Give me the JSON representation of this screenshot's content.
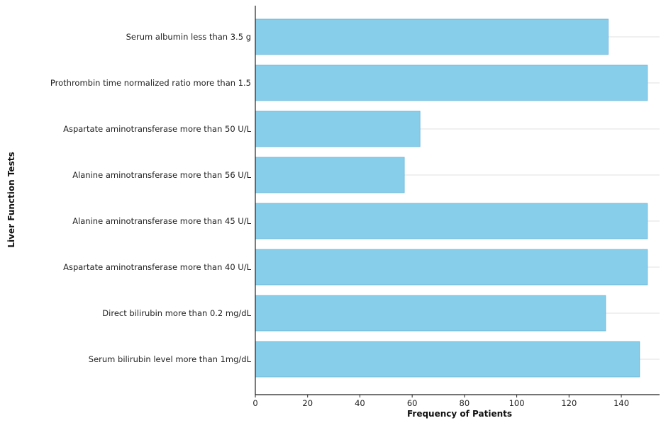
{
  "chart_data": {
    "type": "bar",
    "orientation": "horizontal",
    "categories": [
      "Serum albumin less than 3.5 g",
      "Prothrombin time normalized ratio more than 1.5",
      "Aspartate aminotransferase more than 50 U/L",
      "Alanine aminotransferase more than 56 U/L",
      "Alanine aminotransferase more than 45 U/L",
      "Aspartate aminotransferase more than 40 U/L",
      "Direct bilirubin more than 0.2 mg/dL",
      "Serum bilirubin level more than 1mg/dL"
    ],
    "values": [
      135,
      150,
      63,
      57,
      150,
      150,
      134,
      147
    ],
    "xlabel": "Frequency of Patients",
    "ylabel": "Liver Function Tests",
    "xlim": [
      0,
      155
    ],
    "xticks": [
      0,
      20,
      40,
      60,
      80,
      100,
      120,
      140
    ],
    "grid": "horizontal",
    "bar_color": "#87CEEB",
    "bar_edge_color": "#6fb4d8"
  }
}
